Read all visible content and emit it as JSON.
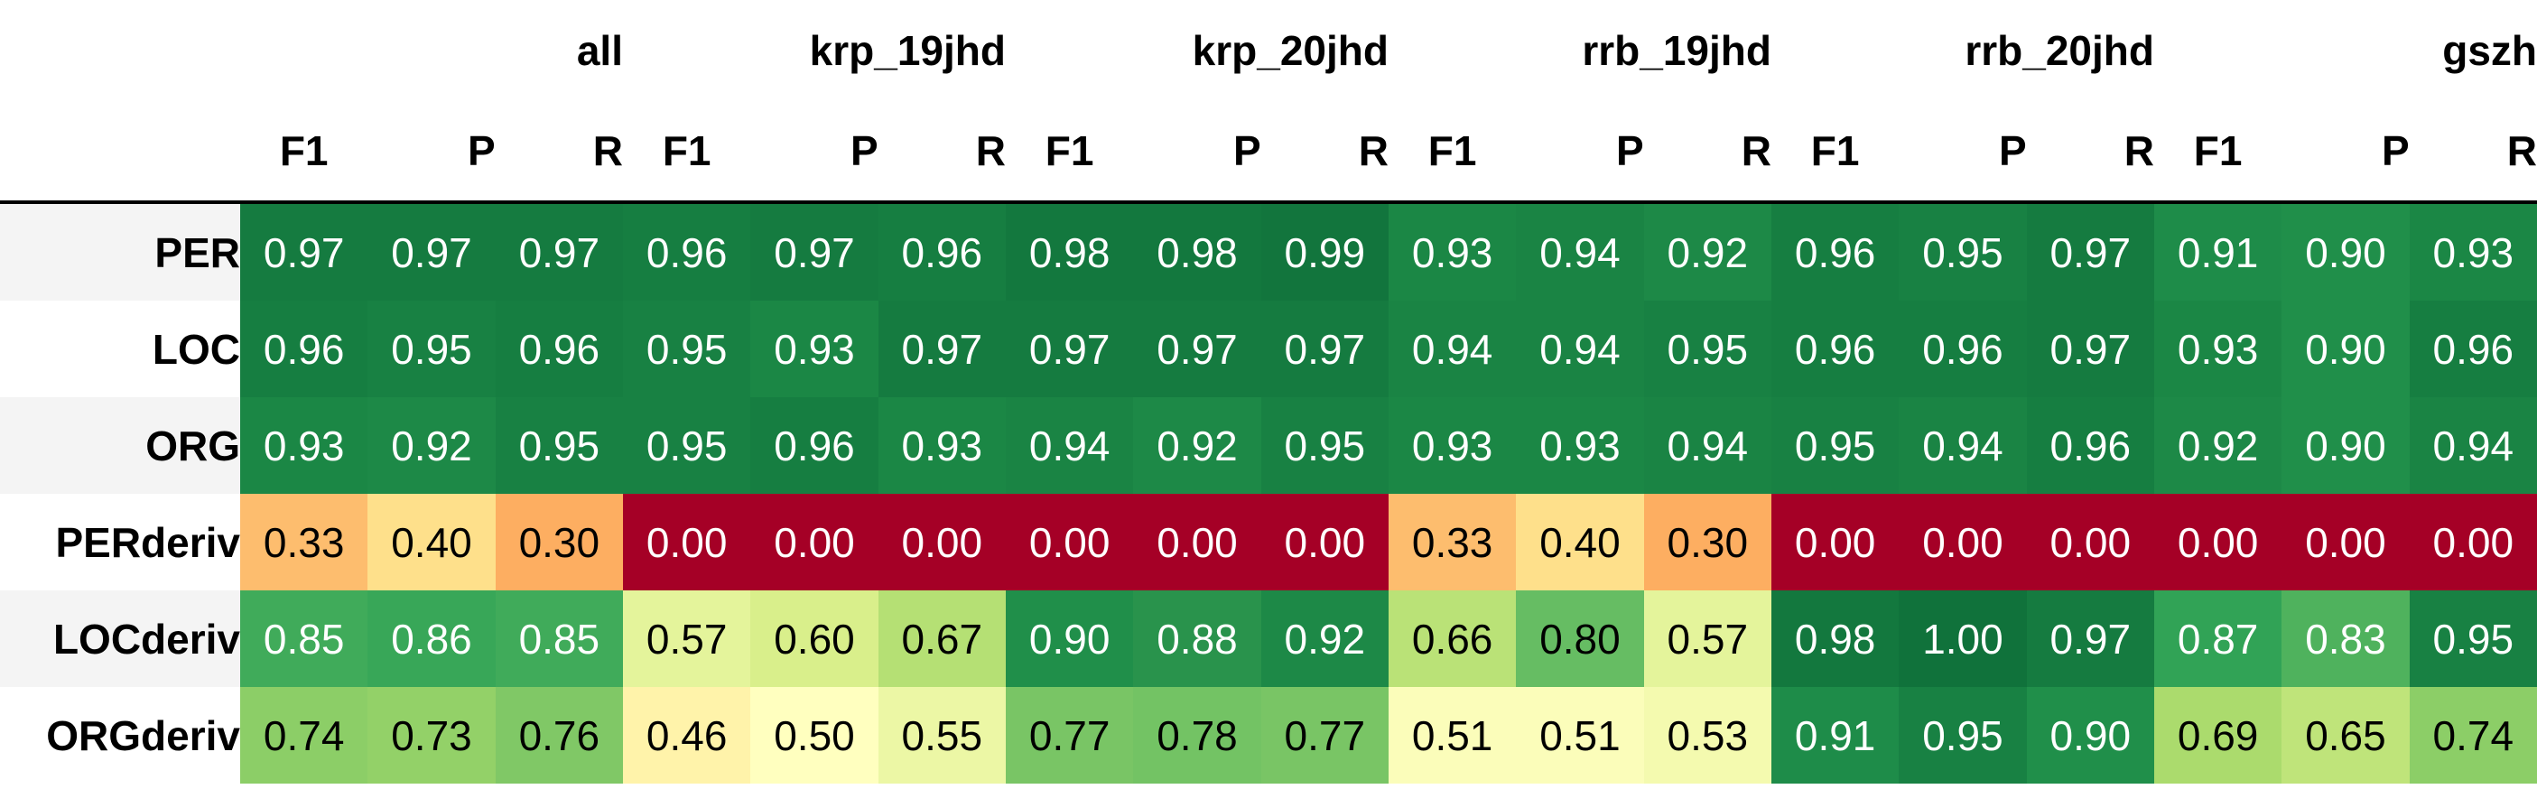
{
  "chart_data": {
    "type": "heatmap",
    "groups": [
      "all",
      "krp_19jhd",
      "krp_20jhd",
      "rrb_19jhd",
      "rrb_20jhd",
      "gszh"
    ],
    "metrics": [
      "F1",
      "P",
      "R"
    ],
    "rows": [
      {
        "label": "PER",
        "values": [
          0.97,
          0.97,
          0.97,
          0.96,
          0.97,
          0.96,
          0.98,
          0.98,
          0.99,
          0.93,
          0.94,
          0.92,
          0.96,
          0.95,
          0.97,
          0.91,
          0.9,
          0.93
        ]
      },
      {
        "label": "LOC",
        "values": [
          0.96,
          0.95,
          0.96,
          0.95,
          0.93,
          0.97,
          0.97,
          0.97,
          0.97,
          0.94,
          0.94,
          0.95,
          0.96,
          0.96,
          0.97,
          0.93,
          0.9,
          0.96
        ]
      },
      {
        "label": "ORG",
        "values": [
          0.93,
          0.92,
          0.95,
          0.95,
          0.96,
          0.93,
          0.94,
          0.92,
          0.95,
          0.93,
          0.93,
          0.94,
          0.95,
          0.94,
          0.96,
          0.92,
          0.9,
          0.94
        ]
      },
      {
        "label": "PERderiv",
        "values": [
          0.33,
          0.4,
          0.3,
          0.0,
          0.0,
          0.0,
          0.0,
          0.0,
          0.0,
          0.33,
          0.4,
          0.3,
          0.0,
          0.0,
          0.0,
          0.0,
          0.0,
          0.0
        ]
      },
      {
        "label": "LOCderiv",
        "values": [
          0.85,
          0.86,
          0.85,
          0.57,
          0.6,
          0.67,
          0.9,
          0.88,
          0.92,
          0.66,
          0.8,
          0.57,
          0.98,
          1.0,
          0.97,
          0.87,
          0.83,
          0.95
        ]
      },
      {
        "label": "ORGderiv",
        "values": [
          0.74,
          0.73,
          0.76,
          0.46,
          0.5,
          0.55,
          0.77,
          0.78,
          0.77,
          0.51,
          0.51,
          0.53,
          0.91,
          0.95,
          0.9,
          0.69,
          0.65,
          0.74
        ]
      }
    ],
    "value_format_decimals": 2,
    "colormap": "RdYlGn",
    "vmin": 0.0,
    "vmax": 1.0
  }
}
